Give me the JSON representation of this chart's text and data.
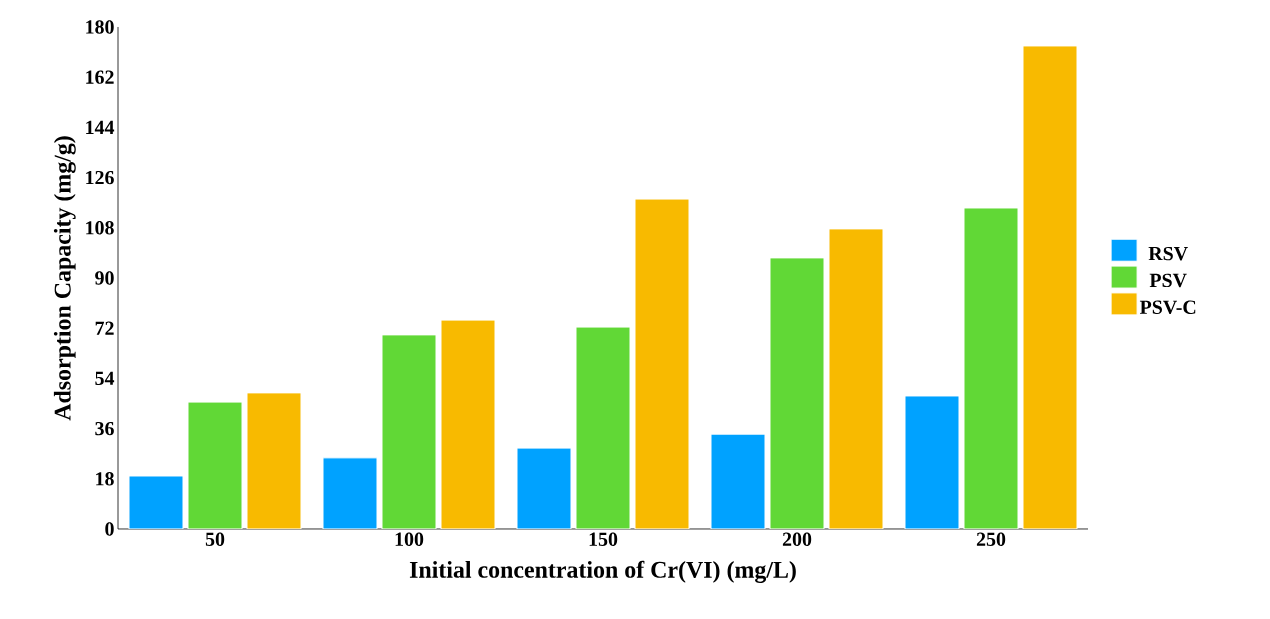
{
  "chart_data": {
    "type": "bar",
    "xlabel": "Initial concentration of Cr(VI) (mg/L)",
    "ylabel": "Adsorption Capacity (mg/g)",
    "categories": [
      "50",
      "100",
      "150",
      "200",
      "250"
    ],
    "series": [
      {
        "name": "RSV",
        "color": "#00a2ff",
        "values": [
          19.0,
          25.5,
          29.0,
          34.0,
          47.7
        ]
      },
      {
        "name": "PSV",
        "color": "#61d836",
        "values": [
          45.5,
          69.6,
          72.4,
          97.2,
          115.1
        ]
      },
      {
        "name": "PSV-C",
        "color": "#f8ba00",
        "values": [
          48.8,
          74.9,
          118.3,
          107.6,
          173.2
        ]
      }
    ],
    "ylim": [
      0,
      180
    ],
    "yticks": [
      0,
      18,
      36,
      54,
      72,
      90,
      108,
      126,
      144,
      162,
      180
    ],
    "grid": false,
    "legend": "right"
  }
}
